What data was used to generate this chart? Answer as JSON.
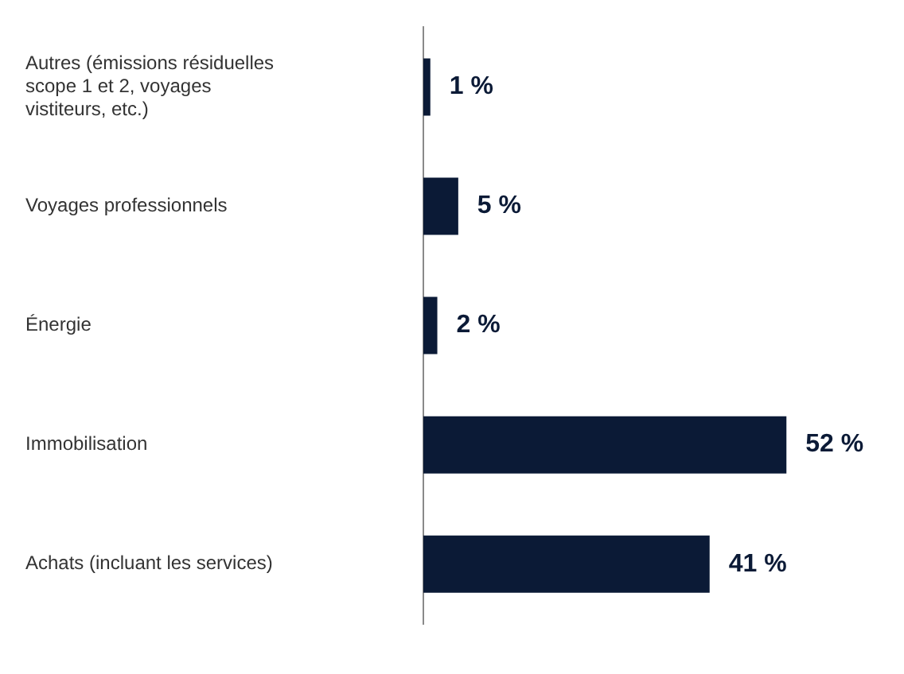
{
  "chart_data": {
    "type": "bar",
    "orientation": "horizontal",
    "categories": [
      "Autres (émissions résiduelles scope 1 et 2, voyages vistiteurs, etc.)",
      "Voyages professionnels",
      "Énergie",
      "Immobilisation",
      "Achats (incluant les services)"
    ],
    "values": [
      1,
      5,
      2,
      52,
      41
    ],
    "color": "#0b1a36",
    "value_labels": [
      "1 %",
      "5 %",
      "2 %",
      "52 %",
      "41 %"
    ],
    "legend": false,
    "tick_labels": "y"
  }
}
